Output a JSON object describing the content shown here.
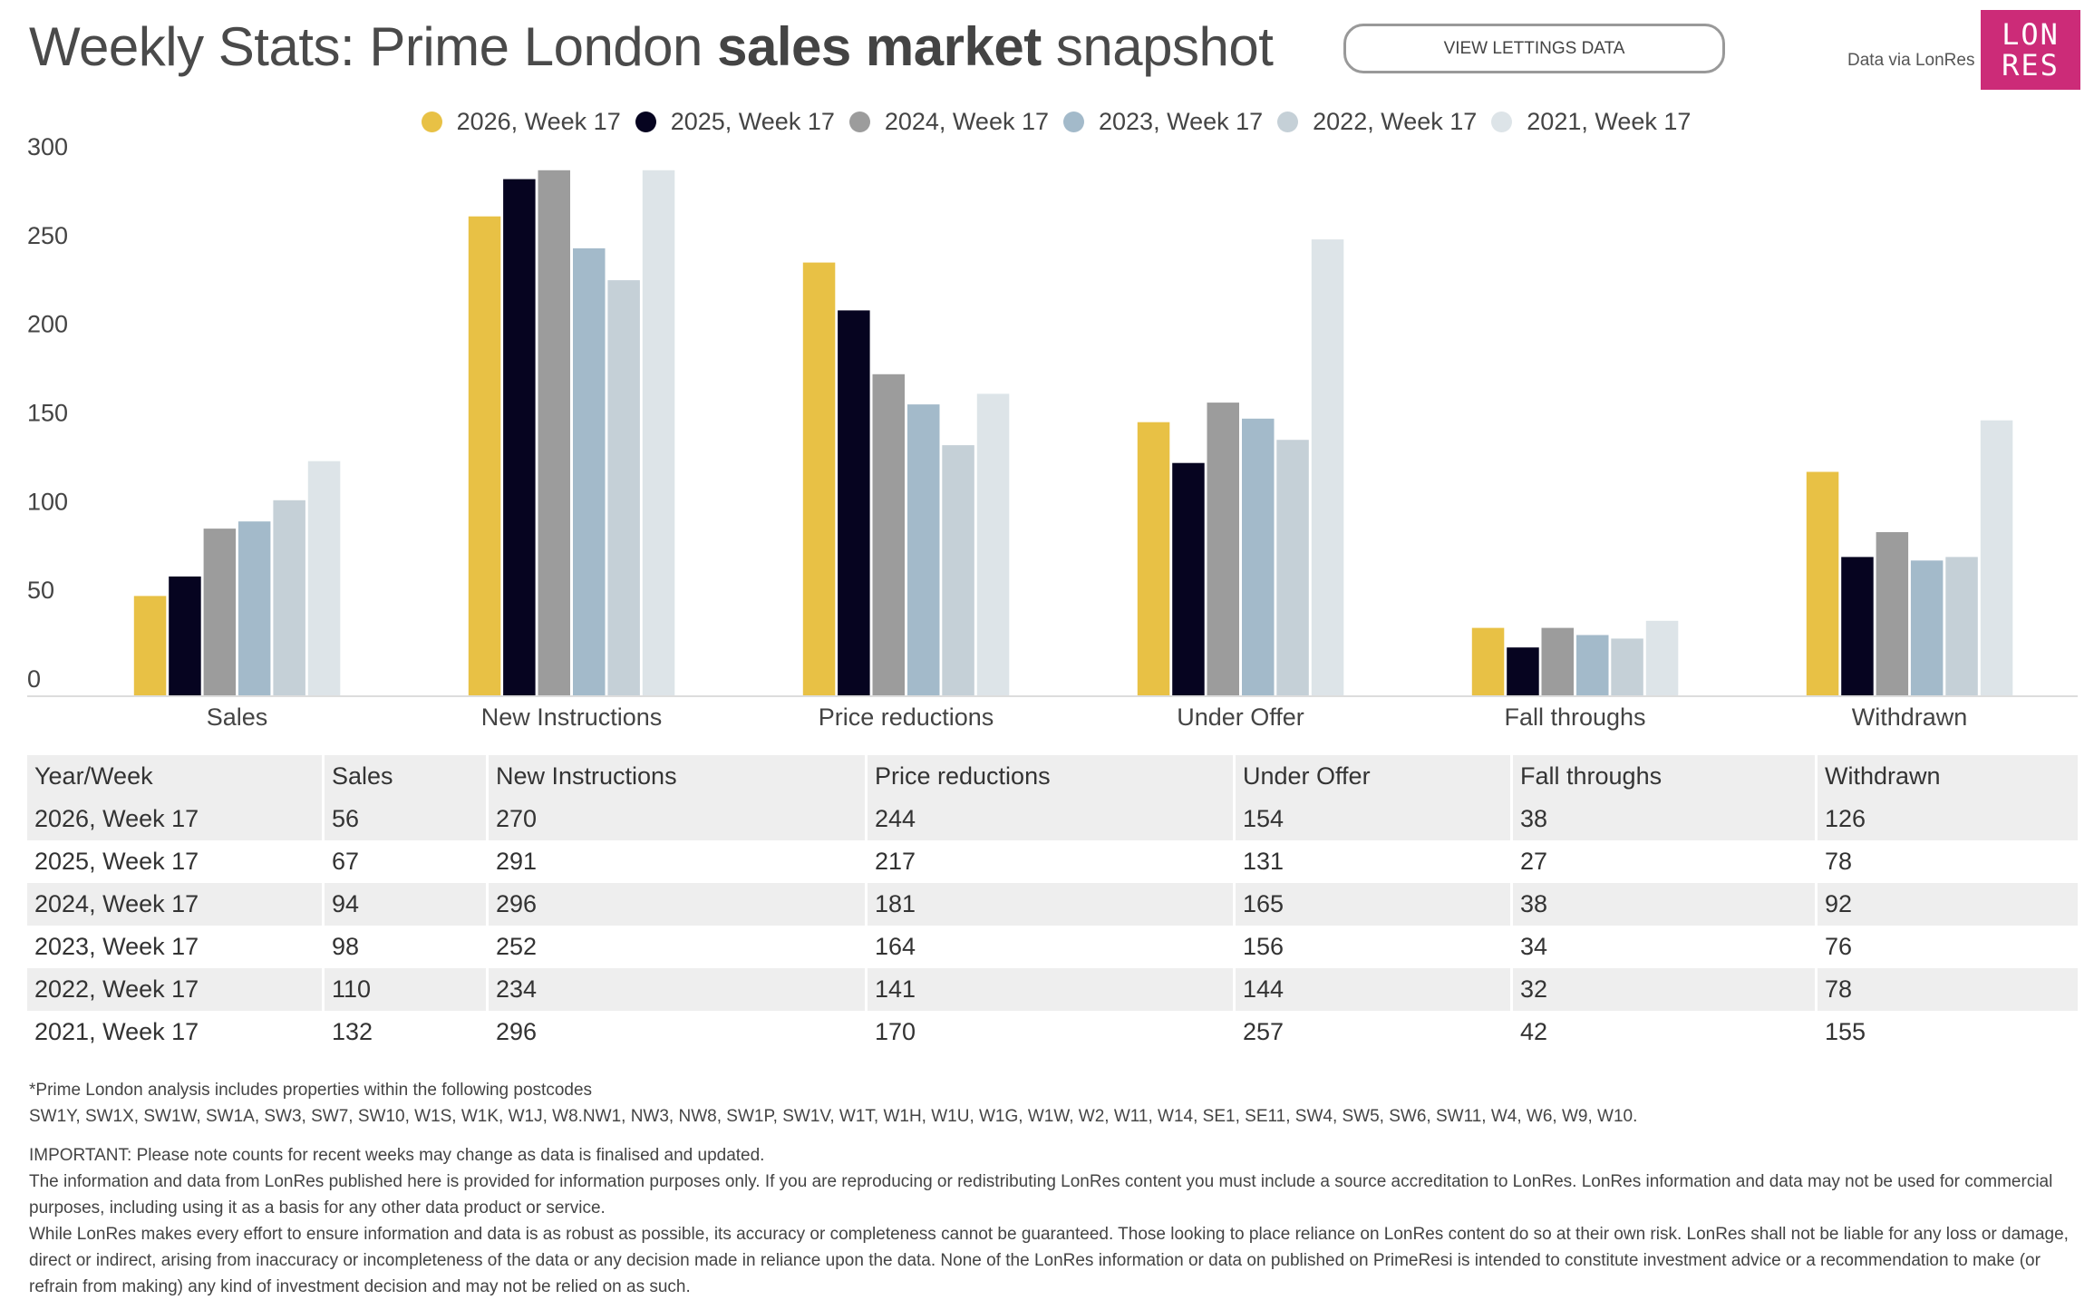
{
  "header": {
    "title_prefix": "Weekly Stats: Prime London ",
    "title_bold": "sales market",
    "title_suffix": " snapshot",
    "lettings_button": "VIEW LETTINGS DATA",
    "data_via": "Data via LonRes",
    "logo_line1": "LON",
    "logo_line2": "RES",
    "logo_color": "#CC2B78"
  },
  "chart_data": {
    "type": "bar",
    "title": "Weekly Stats: Prime London sales market snapshot",
    "xlabel": "",
    "ylabel": "",
    "ylim": [
      0,
      300
    ],
    "yticks": [
      "0",
      "50",
      "100",
      "150",
      "200",
      "250",
      "300"
    ],
    "grid": false,
    "legend_position": "top-center",
    "categories": [
      "Sales",
      "New Instructions",
      "Price reductions",
      "Under Offer",
      "Fall throughs",
      "Withdrawn"
    ],
    "series": [
      {
        "name": "2026, Week 17",
        "color": "#E8C145",
        "values": [
          56,
          270,
          244,
          154,
          38,
          126
        ]
      },
      {
        "name": "2025, Week 17",
        "color": "#060420",
        "values": [
          67,
          291,
          217,
          131,
          27,
          78
        ]
      },
      {
        "name": "2024, Week 17",
        "color": "#9C9C9C",
        "values": [
          94,
          296,
          181,
          165,
          38,
          92
        ]
      },
      {
        "name": "2023, Week 17",
        "color": "#A3BACA",
        "values": [
          98,
          252,
          164,
          156,
          34,
          76
        ]
      },
      {
        "name": "2022, Week 17",
        "color": "#C5D0D7",
        "values": [
          110,
          234,
          141,
          144,
          32,
          78
        ]
      },
      {
        "name": "2021, Week 17",
        "color": "#DDE4E8",
        "values": [
          132,
          296,
          170,
          257,
          42,
          155
        ]
      }
    ]
  },
  "table": {
    "headers": [
      "Year/Week",
      "Sales",
      "New Instructions",
      "Price reductions",
      "Under Offer",
      "Fall throughs",
      "Withdrawn"
    ],
    "rows": [
      [
        "2026, Week 17",
        "56",
        "270",
        "244",
        "154",
        "38",
        "126"
      ],
      [
        "2025, Week 17",
        "67",
        "291",
        "217",
        "131",
        "27",
        "78"
      ],
      [
        "2024, Week 17",
        "94",
        "296",
        "181",
        "165",
        "38",
        "92"
      ],
      [
        "2023, Week 17",
        "98",
        "252",
        "164",
        "156",
        "34",
        "76"
      ],
      [
        "2022, Week 17",
        "110",
        "234",
        "141",
        "144",
        "32",
        "78"
      ],
      [
        "2021, Week 17",
        "132",
        "296",
        "170",
        "257",
        "42",
        "155"
      ]
    ]
  },
  "notes": {
    "postcodes_intro": "*Prime London analysis includes properties within the following postcodes",
    "postcodes_list": "SW1Y, SW1X, SW1W, SW1A, SW3, SW7, SW10, W1S, W1K, W1J, W8.NW1, NW3, NW8, SW1P, SW1V, W1T, W1H, W1U, W1G, W1W, W2, W11, W14, SE1, SE11, SW4, SW5, SW6, SW11, W4, W6, W9, W10.",
    "important": "IMPORTANT: Please note counts for recent weeks may change as data is finalised and updated.",
    "usage": "The information and data from LonRes published here is provided for information purposes only. If you are reproducing or redistributing LonRes content you must include a source accreditation to LonRes. LonRes information and data may not be used for commercial purposes, including using it as a basis for any other data product or service.",
    "disclaimer": "While LonRes makes every effort to ensure information and data is as robust as possible, its accuracy or completeness cannot be guaranteed. Those looking to place reliance on LonRes content do so at their own risk. LonRes shall not be liable for any loss or damage, direct or indirect, arising from inaccuracy or incompleteness of the data or any decision made in reliance upon the data. None of the LonRes information or data on published on PrimeResi is intended to constitute investment advice or a recommendation to make (or refrain from making) any kind of investment decision and may not be relied on as such."
  }
}
